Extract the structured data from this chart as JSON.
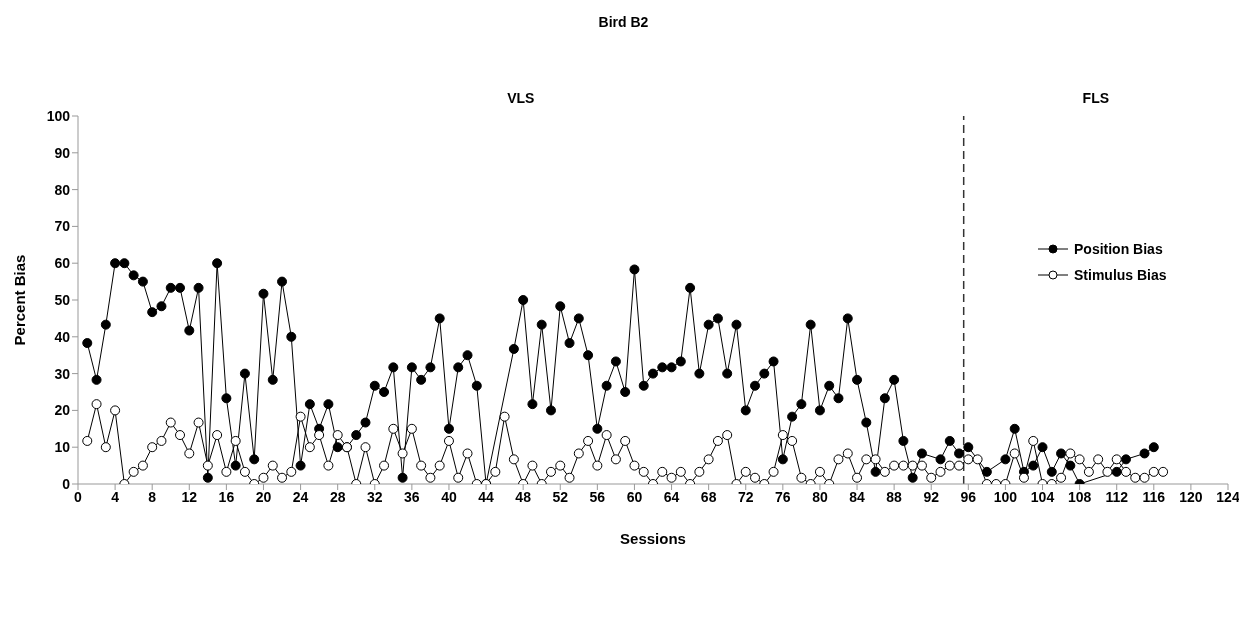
{
  "chart_data": {
    "type": "line",
    "title": "Bird B2",
    "xlabel": "Sessions",
    "ylabel": "Percent Bias",
    "annotations": [
      "VLS",
      "FLS"
    ],
    "x": [
      1,
      2,
      3,
      4,
      5,
      6,
      7,
      8,
      9,
      10,
      11,
      12,
      13,
      14,
      15,
      16,
      17,
      18,
      19,
      20,
      21,
      22,
      23,
      24,
      25,
      26,
      27,
      28,
      29,
      30,
      31,
      32,
      33,
      34,
      35,
      36,
      37,
      38,
      39,
      40,
      41,
      42,
      43,
      44,
      45,
      46,
      47,
      48,
      49,
      50,
      51,
      52,
      53,
      54,
      55,
      56,
      57,
      58,
      59,
      60,
      61,
      62,
      63,
      64,
      65,
      66,
      67,
      68,
      69,
      70,
      71,
      72,
      73,
      74,
      75,
      76,
      77,
      78,
      79,
      80,
      81,
      82,
      83,
      84,
      85,
      86,
      87,
      88,
      89,
      90,
      91,
      92,
      93,
      94,
      95,
      96,
      97,
      98,
      99,
      100,
      101,
      102,
      103,
      104,
      105,
      106,
      107,
      108,
      109,
      110,
      111,
      112,
      113,
      114,
      115,
      116,
      117
    ],
    "series": [
      {
        "name": "Position Bias",
        "color": "#000000",
        "values": [
          38.3,
          28.3,
          43.3,
          60,
          60,
          56.7,
          55,
          46.7,
          48.3,
          53.3,
          53.3,
          41.7,
          53.3,
          1.7,
          60,
          23.3,
          5,
          30,
          6.7,
          51.7,
          28.3,
          55,
          40,
          5,
          21.7,
          15,
          21.7,
          10,
          10,
          13.3,
          16.7,
          26.7,
          25,
          31.7,
          1.7,
          31.7,
          28.3,
          31.7,
          45,
          15,
          31.7,
          35,
          26.7,
          0,
          null,
          null,
          36.7,
          50,
          21.7,
          43.3,
          20,
          48.3,
          38.3,
          45,
          35,
          15,
          26.7,
          33.3,
          25,
          58.3,
          26.7,
          30,
          31.7,
          31.7,
          33.3,
          53.3,
          30,
          43.3,
          45,
          30,
          43.3,
          20,
          26.7,
          30,
          33.3,
          6.7,
          18.3,
          21.7,
          43.3,
          20,
          26.7,
          23.3,
          45,
          28.3,
          16.7,
          3.3,
          23.3,
          28.3,
          11.7,
          1.7,
          8.3,
          null,
          6.7,
          11.7,
          8.3,
          10,
          null,
          3.3,
          null,
          6.7,
          15,
          3.3,
          5,
          10,
          3.3,
          8.3,
          5,
          0,
          null,
          null,
          null,
          3.3,
          6.7,
          null,
          8.3,
          10,
          null
        ]
      },
      {
        "name": "Stimulus Bias",
        "color": "#ffffff",
        "values": [
          11.7,
          21.7,
          10,
          20,
          0,
          3.3,
          5,
          10,
          11.7,
          16.7,
          13.3,
          8.3,
          16.7,
          5,
          13.3,
          3.3,
          11.7,
          3.3,
          0,
          1.7,
          5,
          1.7,
          3.3,
          18.3,
          10,
          13.3,
          5,
          13.3,
          10,
          0,
          10,
          0,
          5,
          15,
          8.3,
          15,
          5,
          1.7,
          5,
          11.7,
          1.7,
          8.3,
          0,
          0,
          3.3,
          18.3,
          6.7,
          0,
          5,
          0,
          3.3,
          5,
          1.7,
          8.3,
          11.7,
          5,
          13.3,
          6.7,
          11.7,
          5,
          3.3,
          0,
          3.3,
          1.7,
          3.3,
          0,
          3.3,
          6.7,
          11.7,
          13.3,
          0,
          3.3,
          1.7,
          0,
          3.3,
          13.3,
          11.7,
          1.7,
          0,
          3.3,
          0,
          6.7,
          8.3,
          1.7,
          6.7,
          6.7,
          3.3,
          5,
          5,
          5,
          5,
          1.7,
          3.3,
          5,
          5,
          6.7,
          6.7,
          0,
          0,
          0,
          8.3,
          1.7,
          11.7,
          0,
          0,
          1.7,
          8.3,
          6.7,
          3.3,
          6.7,
          3.3,
          6.7,
          3.3,
          1.7,
          1.7,
          3.3,
          3.3
        ]
      }
    ],
    "xlim": [
      0,
      124
    ],
    "xticks": [
      0,
      4,
      8,
      12,
      16,
      20,
      24,
      28,
      32,
      36,
      40,
      44,
      48,
      52,
      56,
      60,
      64,
      68,
      72,
      76,
      80,
      84,
      88,
      92,
      96,
      100,
      104,
      108,
      112,
      116,
      120,
      124
    ],
    "ylim": [
      0,
      100
    ],
    "yticks": [
      0,
      10,
      20,
      30,
      40,
      50,
      60,
      70,
      80,
      90,
      100
    ],
    "ref_lines": [
      {
        "axis": "x",
        "value": 95.5,
        "line_style": "dashed",
        "color": "#333333"
      }
    ],
    "grid": false,
    "legend": "right",
    "marker": "circle",
    "line_style": "solid"
  }
}
